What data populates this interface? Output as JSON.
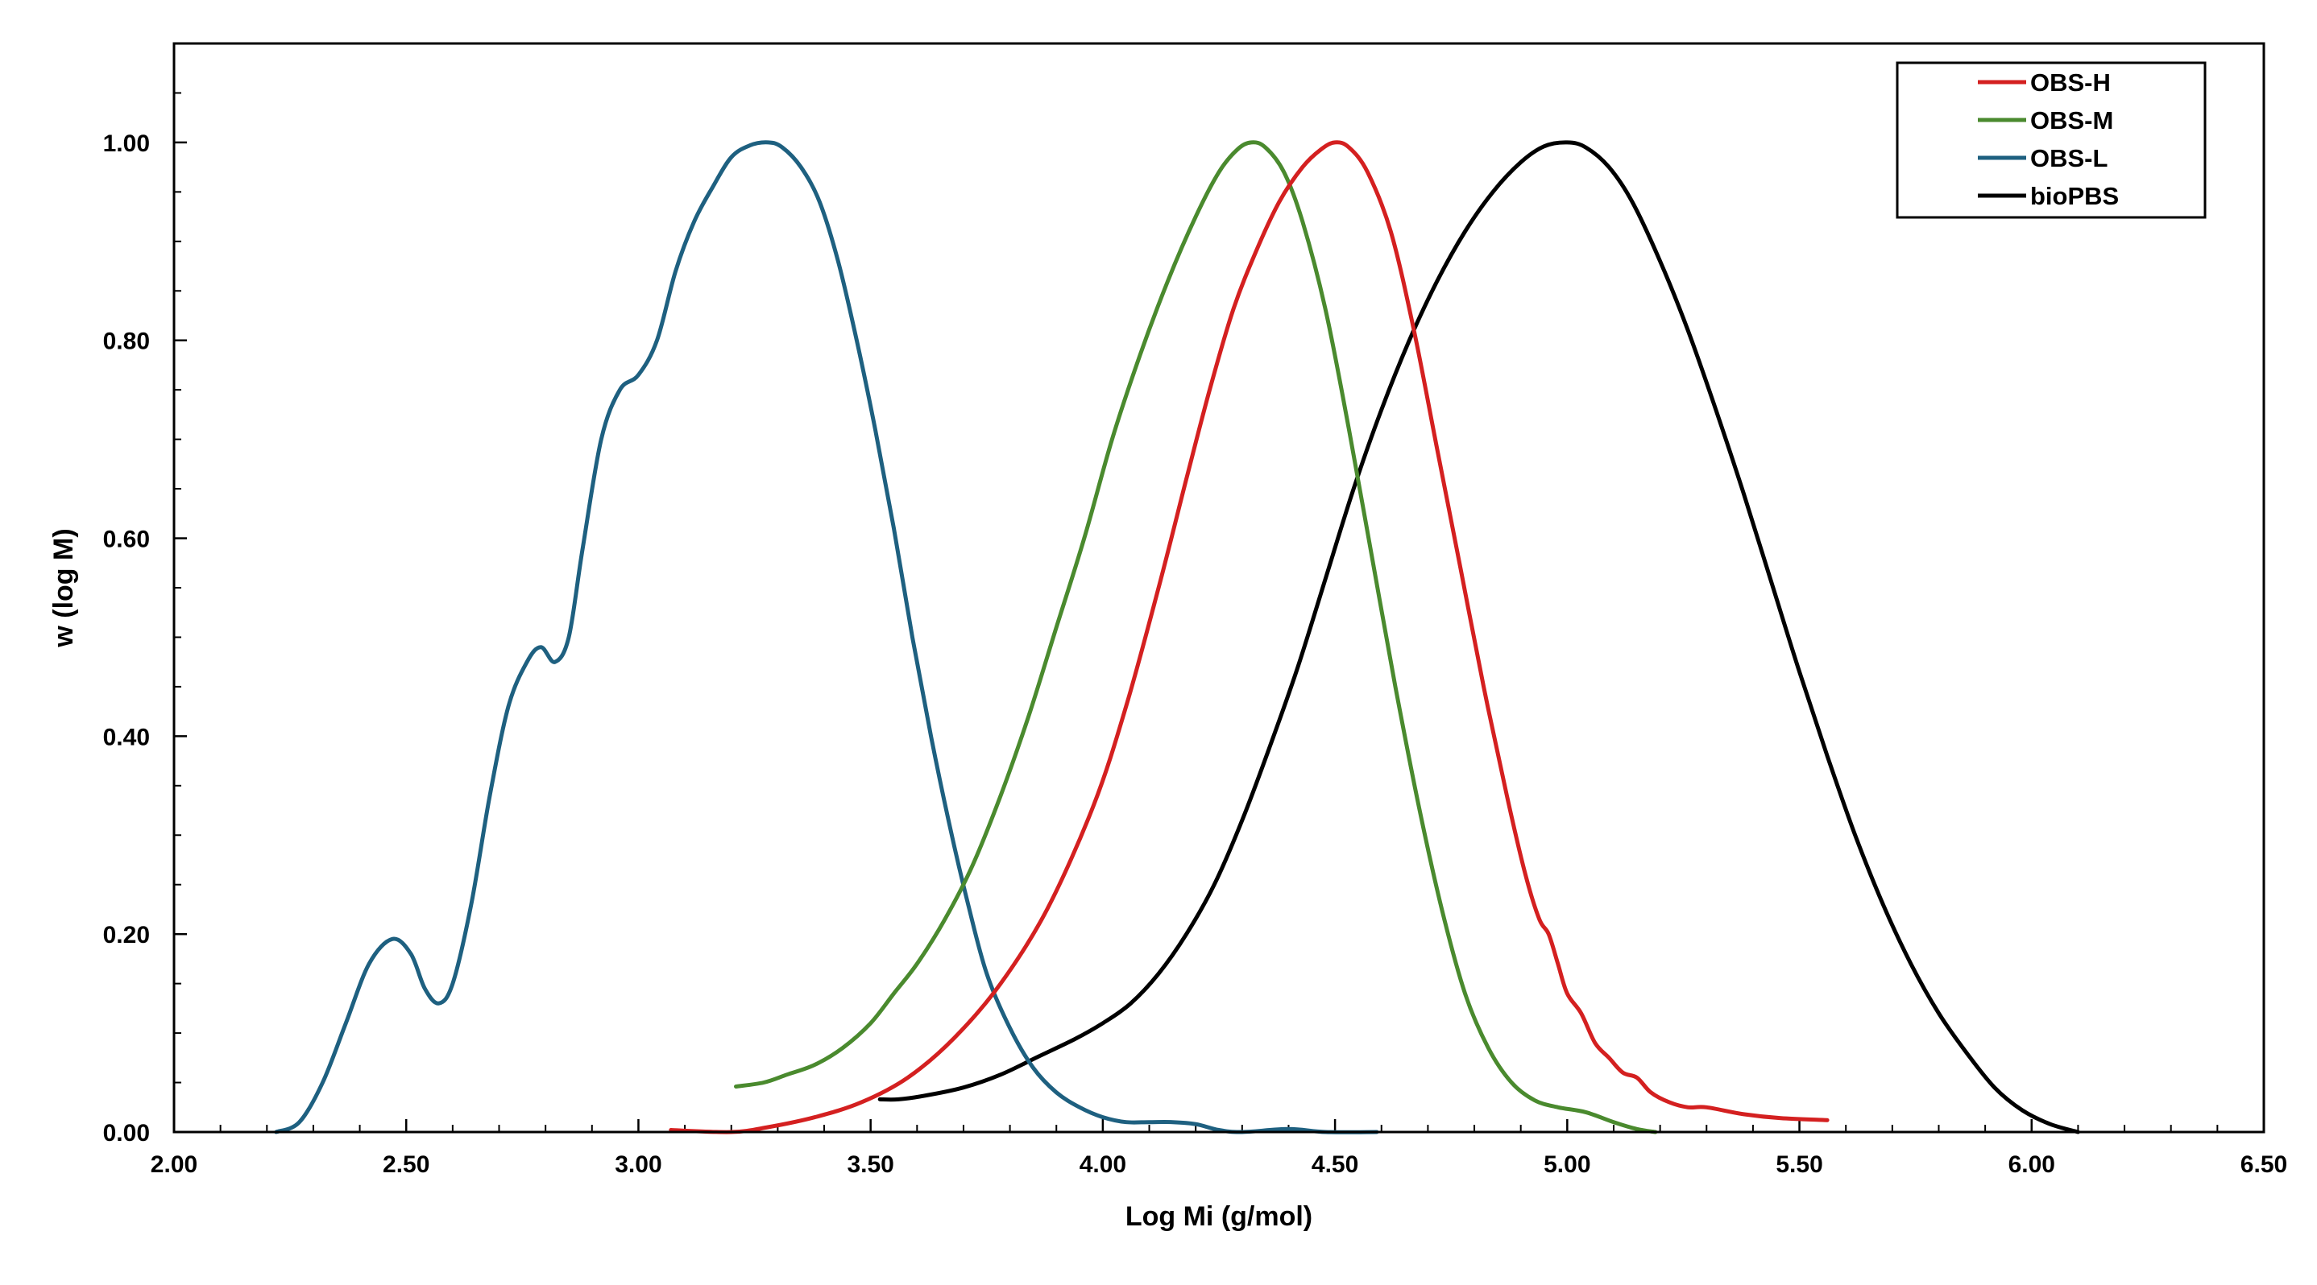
{
  "chart_data": {
    "type": "line",
    "title": "",
    "xlabel": "Log Mi (g/mol)",
    "ylabel": "w (log M)",
    "xlim": [
      2.0,
      6.5
    ],
    "ylim": [
      0.0,
      1.1
    ],
    "x_ticks": [
      2.0,
      2.5,
      3.0,
      3.5,
      4.0,
      4.5,
      5.0,
      5.5,
      6.0,
      6.5
    ],
    "x_tick_labels": [
      "2.00",
      "2.50",
      "3.00",
      "3.50",
      "4.00",
      "4.50",
      "5.00",
      "5.50",
      "6.00",
      "6.50"
    ],
    "y_ticks": [
      0.0,
      0.2,
      0.4,
      0.6,
      0.8,
      1.0
    ],
    "y_tick_labels": [
      "0.00",
      "0.20",
      "0.40",
      "0.60",
      "0.80",
      "1.00"
    ],
    "x_minor_step": 0.1,
    "y_minor_step": 0.05,
    "grid": false,
    "legend_position": "top-right",
    "series": [
      {
        "name": "OBS-H",
        "color": "#d42020",
        "points": [
          [
            3.07,
            0.002
          ],
          [
            3.2,
            0.0
          ],
          [
            3.28,
            0.005
          ],
          [
            3.38,
            0.015
          ],
          [
            3.48,
            0.03
          ],
          [
            3.58,
            0.055
          ],
          [
            3.68,
            0.095
          ],
          [
            3.78,
            0.15
          ],
          [
            3.88,
            0.225
          ],
          [
            3.98,
            0.33
          ],
          [
            4.05,
            0.43
          ],
          [
            4.12,
            0.55
          ],
          [
            4.18,
            0.66
          ],
          [
            4.23,
            0.75
          ],
          [
            4.28,
            0.83
          ],
          [
            4.33,
            0.89
          ],
          [
            4.38,
            0.94
          ],
          [
            4.43,
            0.975
          ],
          [
            4.47,
            0.993
          ],
          [
            4.5,
            1.0
          ],
          [
            4.53,
            0.995
          ],
          [
            4.57,
            0.97
          ],
          [
            4.62,
            0.91
          ],
          [
            4.67,
            0.81
          ],
          [
            4.72,
            0.69
          ],
          [
            4.77,
            0.57
          ],
          [
            4.82,
            0.45
          ],
          [
            4.87,
            0.34
          ],
          [
            4.91,
            0.26
          ],
          [
            4.94,
            0.215
          ],
          [
            4.96,
            0.2
          ],
          [
            4.98,
            0.17
          ],
          [
            5.0,
            0.14
          ],
          [
            5.03,
            0.12
          ],
          [
            5.06,
            0.09
          ],
          [
            5.09,
            0.075
          ],
          [
            5.12,
            0.06
          ],
          [
            5.15,
            0.055
          ],
          [
            5.18,
            0.04
          ],
          [
            5.22,
            0.03
          ],
          [
            5.26,
            0.025
          ],
          [
            5.3,
            0.025
          ],
          [
            5.38,
            0.018
          ],
          [
            5.46,
            0.014
          ],
          [
            5.56,
            0.012
          ]
        ]
      },
      {
        "name": "OBS-M",
        "color": "#4a8a2e",
        "points": [
          [
            3.21,
            0.046
          ],
          [
            3.27,
            0.05
          ],
          [
            3.32,
            0.058
          ],
          [
            3.38,
            0.068
          ],
          [
            3.44,
            0.085
          ],
          [
            3.5,
            0.11
          ],
          [
            3.55,
            0.14
          ],
          [
            3.6,
            0.17
          ],
          [
            3.66,
            0.215
          ],
          [
            3.72,
            0.27
          ],
          [
            3.78,
            0.34
          ],
          [
            3.84,
            0.42
          ],
          [
            3.9,
            0.51
          ],
          [
            3.96,
            0.6
          ],
          [
            4.02,
            0.7
          ],
          [
            4.08,
            0.785
          ],
          [
            4.14,
            0.86
          ],
          [
            4.2,
            0.925
          ],
          [
            4.25,
            0.97
          ],
          [
            4.29,
            0.993
          ],
          [
            4.32,
            1.0
          ],
          [
            4.35,
            0.995
          ],
          [
            4.39,
            0.97
          ],
          [
            4.43,
            0.92
          ],
          [
            4.48,
            0.83
          ],
          [
            4.53,
            0.71
          ],
          [
            4.58,
            0.58
          ],
          [
            4.63,
            0.45
          ],
          [
            4.68,
            0.33
          ],
          [
            4.73,
            0.225
          ],
          [
            4.78,
            0.14
          ],
          [
            4.83,
            0.085
          ],
          [
            4.88,
            0.05
          ],
          [
            4.93,
            0.032
          ],
          [
            4.98,
            0.025
          ],
          [
            5.04,
            0.02
          ],
          [
            5.1,
            0.01
          ],
          [
            5.15,
            0.003
          ],
          [
            5.19,
            0.0
          ]
        ]
      },
      {
        "name": "OBS-L",
        "color": "#1e6080",
        "points": [
          [
            2.22,
            0.0
          ],
          [
            2.27,
            0.01
          ],
          [
            2.32,
            0.05
          ],
          [
            2.37,
            0.11
          ],
          [
            2.42,
            0.17
          ],
          [
            2.47,
            0.195
          ],
          [
            2.51,
            0.18
          ],
          [
            2.54,
            0.145
          ],
          [
            2.57,
            0.13
          ],
          [
            2.6,
            0.15
          ],
          [
            2.64,
            0.23
          ],
          [
            2.68,
            0.34
          ],
          [
            2.72,
            0.43
          ],
          [
            2.76,
            0.475
          ],
          [
            2.79,
            0.49
          ],
          [
            2.82,
            0.475
          ],
          [
            2.85,
            0.5
          ],
          [
            2.88,
            0.59
          ],
          [
            2.92,
            0.7
          ],
          [
            2.96,
            0.75
          ],
          [
            3.0,
            0.765
          ],
          [
            3.04,
            0.8
          ],
          [
            3.08,
            0.87
          ],
          [
            3.12,
            0.92
          ],
          [
            3.16,
            0.955
          ],
          [
            3.2,
            0.985
          ],
          [
            3.24,
            0.997
          ],
          [
            3.28,
            1.0
          ],
          [
            3.31,
            0.995
          ],
          [
            3.35,
            0.975
          ],
          [
            3.39,
            0.94
          ],
          [
            3.43,
            0.88
          ],
          [
            3.47,
            0.8
          ],
          [
            3.51,
            0.71
          ],
          [
            3.55,
            0.61
          ],
          [
            3.59,
            0.5
          ],
          [
            3.63,
            0.4
          ],
          [
            3.67,
            0.31
          ],
          [
            3.71,
            0.23
          ],
          [
            3.75,
            0.16
          ],
          [
            3.8,
            0.105
          ],
          [
            3.85,
            0.065
          ],
          [
            3.9,
            0.04
          ],
          [
            3.95,
            0.025
          ],
          [
            4.0,
            0.015
          ],
          [
            4.05,
            0.01
          ],
          [
            4.1,
            0.01
          ],
          [
            4.15,
            0.01
          ],
          [
            4.2,
            0.008
          ],
          [
            4.25,
            0.002
          ],
          [
            4.3,
            0.0
          ],
          [
            4.4,
            0.003
          ],
          [
            4.48,
            0.0
          ],
          [
            4.59,
            0.0
          ]
        ]
      },
      {
        "name": "bioPBS",
        "color": "#000000",
        "points": [
          [
            3.52,
            0.033
          ],
          [
            3.56,
            0.033
          ],
          [
            3.62,
            0.037
          ],
          [
            3.7,
            0.045
          ],
          [
            3.78,
            0.058
          ],
          [
            3.86,
            0.076
          ],
          [
            3.94,
            0.094
          ],
          [
            4.0,
            0.11
          ],
          [
            4.06,
            0.13
          ],
          [
            4.12,
            0.16
          ],
          [
            4.18,
            0.2
          ],
          [
            4.24,
            0.25
          ],
          [
            4.3,
            0.315
          ],
          [
            4.36,
            0.39
          ],
          [
            4.42,
            0.47
          ],
          [
            4.48,
            0.56
          ],
          [
            4.54,
            0.65
          ],
          [
            4.6,
            0.73
          ],
          [
            4.66,
            0.8
          ],
          [
            4.72,
            0.86
          ],
          [
            4.78,
            0.91
          ],
          [
            4.84,
            0.95
          ],
          [
            4.9,
            0.98
          ],
          [
            4.95,
            0.996
          ],
          [
            5.0,
            1.0
          ],
          [
            5.04,
            0.995
          ],
          [
            5.09,
            0.975
          ],
          [
            5.14,
            0.94
          ],
          [
            5.2,
            0.88
          ],
          [
            5.26,
            0.81
          ],
          [
            5.32,
            0.73
          ],
          [
            5.38,
            0.645
          ],
          [
            5.44,
            0.555
          ],
          [
            5.5,
            0.465
          ],
          [
            5.56,
            0.38
          ],
          [
            5.62,
            0.3
          ],
          [
            5.68,
            0.23
          ],
          [
            5.74,
            0.17
          ],
          [
            5.8,
            0.12
          ],
          [
            5.86,
            0.08
          ],
          [
            5.92,
            0.045
          ],
          [
            5.98,
            0.022
          ],
          [
            6.04,
            0.008
          ],
          [
            6.1,
            0.0
          ]
        ]
      }
    ]
  }
}
